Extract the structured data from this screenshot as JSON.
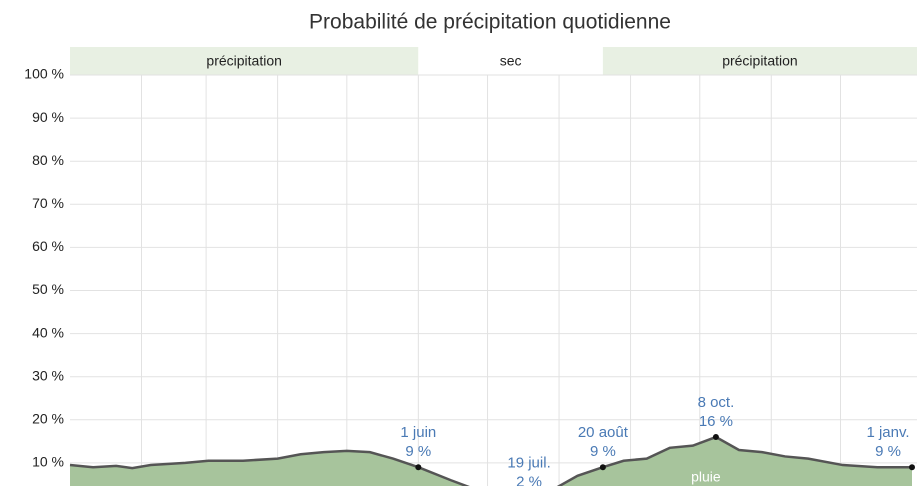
{
  "chart_data": {
    "type": "area",
    "title": "Probabilité de précipitation quotidienne",
    "x": [
      0,
      10,
      20,
      27,
      35,
      50,
      60,
      75,
      90,
      100,
      110,
      120,
      130,
      140,
      151,
      165,
      180,
      190,
      199,
      210,
      220,
      231,
      240,
      250,
      260,
      270,
      280,
      290,
      300,
      310,
      320,
      335,
      350,
      365
    ],
    "series": [
      {
        "name": "pluie",
        "color": "#a7c49c",
        "values": [
          9.5,
          9,
          9.3,
          8.8,
          9.5,
          10,
          10.5,
          10.5,
          11,
          12,
          12.5,
          12.8,
          12.5,
          11,
          9,
          6,
          3,
          2.5,
          2,
          4,
          7,
          9,
          10.5,
          11,
          13.5,
          14,
          16,
          13,
          12.5,
          11.5,
          11,
          9.5,
          9,
          9
        ]
      }
    ],
    "line_color": "#555555",
    "xlim": [
      0,
      365
    ],
    "xticks": [
      31,
      59,
      90,
      120,
      151,
      181,
      212,
      243,
      273,
      304,
      334
    ],
    "ylim": [
      0,
      100
    ],
    "yticks": [
      {
        "value": 10,
        "label": "10 %"
      },
      {
        "value": 20,
        "label": "20 %"
      },
      {
        "value": 30,
        "label": "30 %"
      },
      {
        "value": 40,
        "label": "40 %"
      },
      {
        "value": 50,
        "label": "50 %"
      },
      {
        "value": 60,
        "label": "60 %"
      },
      {
        "value": 70,
        "label": "70 %"
      },
      {
        "value": 80,
        "label": "80 %"
      },
      {
        "value": 90,
        "label": "90 %"
      },
      {
        "value": 100,
        "label": "100 %"
      }
    ],
    "grid": true,
    "seasons": [
      {
        "label": "précipitation",
        "start": 0,
        "end": 151,
        "color": "#e8f0e3"
      },
      {
        "label": "sec",
        "start": 151,
        "end": 231,
        "color": "#ffffff"
      },
      {
        "label": "précipitation",
        "start": 231,
        "end": 365,
        "color": "#e8f0e3"
      }
    ],
    "annotations": [
      {
        "date": "1 juin",
        "x": 151,
        "value": 9,
        "value_label": "9 %"
      },
      {
        "date": "19 juil.",
        "x": 199,
        "value": 2,
        "value_label": "2 %"
      },
      {
        "date": "20 août",
        "x": 231,
        "value": 9,
        "value_label": "9 %"
      },
      {
        "date": "8 oct.",
        "x": 280,
        "value": 16,
        "value_label": "16 %"
      },
      {
        "date": "1 janv.",
        "x": 365,
        "value": 9,
        "value_label": "9 %"
      }
    ]
  }
}
